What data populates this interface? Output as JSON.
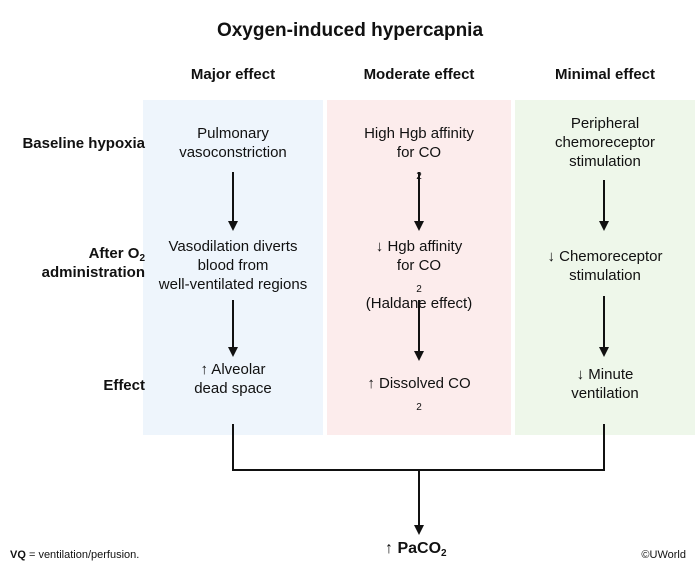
{
  "title": "Oxygen-induced hypercapnia",
  "columns": [
    {
      "header": "Major effect",
      "color": "#eef5fc"
    },
    {
      "header": "Moderate effect",
      "color": "#fcecec"
    },
    {
      "header": "Minimal effect",
      "color": "#eef7ea"
    }
  ],
  "rows": {
    "baseline": "Baseline hypoxia",
    "after_line1": "After O",
    "after_sub": "2",
    "after_line2": "administration",
    "effect": "Effect"
  },
  "cells": {
    "major_baseline": [
      "Pulmonary",
      "vasoconstriction"
    ],
    "major_after": [
      "Vasodilation diverts",
      "blood from",
      "well-ventilated regions"
    ],
    "major_effect": [
      "↑ Alveolar",
      "dead space"
    ],
    "moderate_baseline_1": "High Hgb affinity",
    "moderate_baseline_2a": "for CO",
    "moderate_baseline_2sub": "2",
    "moderate_after_1": "↓ Hgb affinity",
    "moderate_after_2a": "for CO",
    "moderate_after_2sub": "2",
    "moderate_after_3": "(Haldane effect)",
    "moderate_effect_a": "↑ Dissolved CO",
    "moderate_effect_sub": "2",
    "minimal_baseline": [
      "Peripheral",
      "chemoreceptor",
      "stimulation"
    ],
    "minimal_after": [
      "↓ Chemoreceptor",
      "stimulation"
    ],
    "minimal_effect": [
      "↓ Minute",
      "ventilation"
    ]
  },
  "result": {
    "prefix": "↑ PaCO",
    "sub": "2"
  },
  "footnote": {
    "term": "VQ",
    "definition": " = ventilation/perfusion."
  },
  "copyright": "©UWorld",
  "arrow_color": "#111111"
}
